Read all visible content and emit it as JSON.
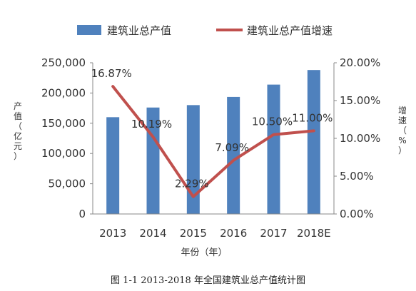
{
  "legend": {
    "bar_label": "建筑业总产值",
    "line_label": "建筑业总产值增速"
  },
  "axes": {
    "left_title": "产值（亿元）",
    "right_title": "增速（%）",
    "x_title": "年份（年）"
  },
  "caption": "图  1-1 2013-2018 年全国建筑业总产值统计图",
  "colors": {
    "bar": "#4f81bd",
    "line": "#c0504d"
  },
  "chart_data": {
    "type": "bar",
    "categories": [
      "2013",
      "2014",
      "2015",
      "2016",
      "2017",
      "2018E"
    ],
    "series": [
      {
        "name": "建筑业总产值",
        "type": "bar",
        "axis": "left",
        "values": [
          160000,
          176000,
          180000,
          193500,
          213900,
          238000
        ]
      },
      {
        "name": "建筑业总产值增速",
        "type": "line",
        "axis": "right",
        "values": [
          16.87,
          10.19,
          2.29,
          7.09,
          10.5,
          11.0
        ],
        "labels": [
          "16.87%",
          "10.19%",
          "2.29%",
          "7.09%",
          "10.50%",
          "11.00%"
        ]
      }
    ],
    "y_left": {
      "range": [
        0,
        250000
      ],
      "ticks": [
        "0",
        "50,000",
        "100,000",
        "150,000",
        "200,000",
        "250,000"
      ]
    },
    "y_right": {
      "range": [
        0,
        20
      ],
      "ticks": [
        "0.00%",
        "5.00%",
        "10.00%",
        "15.00%",
        "20.00%"
      ]
    },
    "grid": false,
    "legend_position": "top"
  }
}
